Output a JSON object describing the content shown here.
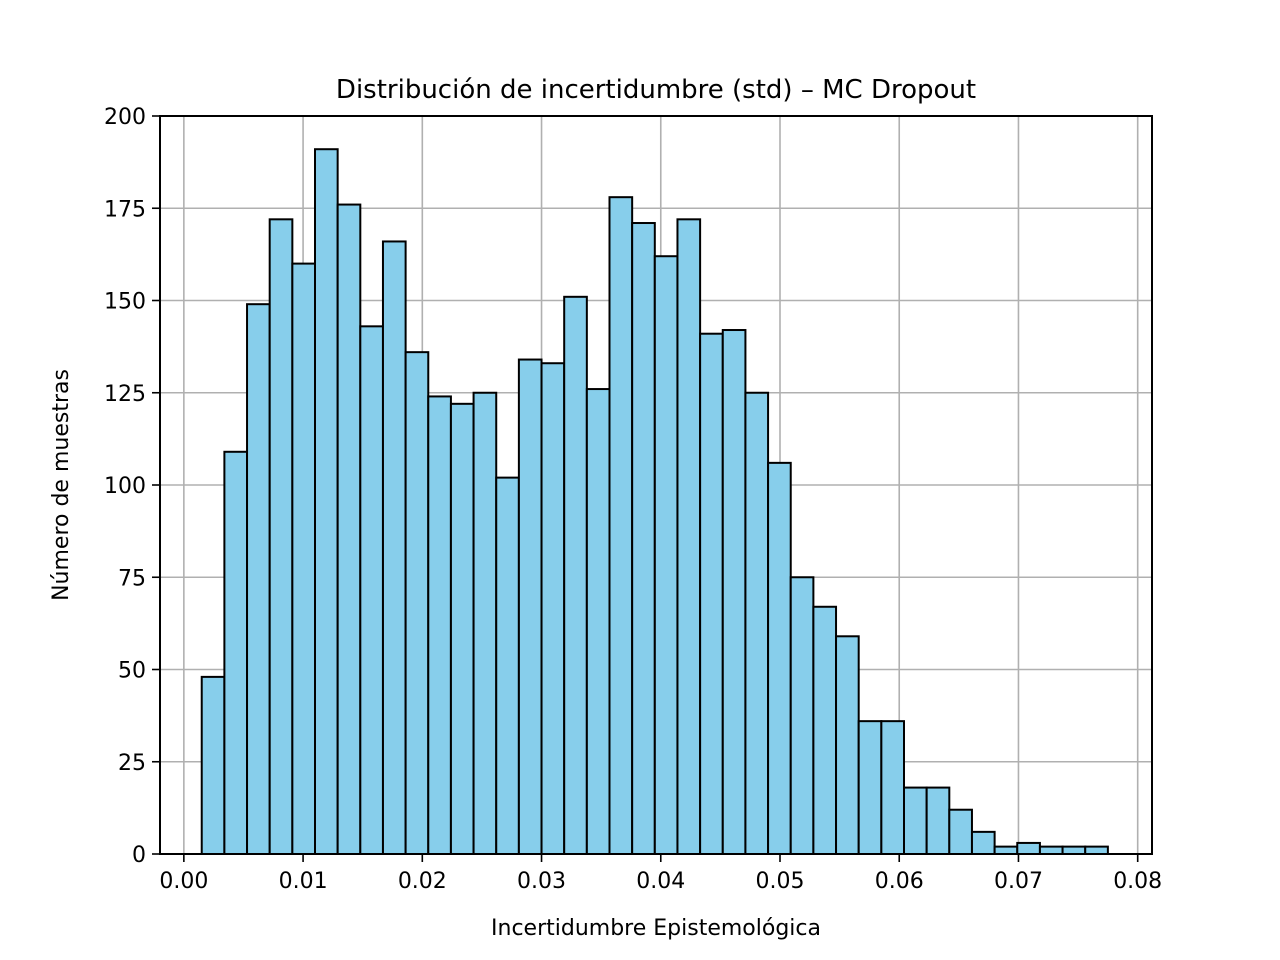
{
  "chart_data": {
    "type": "bar",
    "subtype": "histogram",
    "title": "Distribución de incertidumbre (std) – MC Dropout",
    "xlabel": "Incertidumbre Epistemológica",
    "ylabel": "Número de muestras",
    "xlim": [
      -0.002,
      0.0812
    ],
    "ylim": [
      0,
      200
    ],
    "x_ticks": [
      0.0,
      0.01,
      0.02,
      0.03,
      0.04,
      0.05,
      0.06,
      0.07,
      0.08
    ],
    "x_tick_labels": [
      "0.00",
      "0.01",
      "0.02",
      "0.03",
      "0.04",
      "0.05",
      "0.06",
      "0.07",
      "0.08"
    ],
    "y_ticks": [
      0,
      25,
      50,
      75,
      100,
      125,
      150,
      175,
      200
    ],
    "y_tick_labels": [
      "0",
      "25",
      "50",
      "75",
      "100",
      "125",
      "150",
      "175",
      "200"
    ],
    "grid": true,
    "bin_start": 0.0015,
    "bin_width": 0.0019,
    "values": [
      48,
      109,
      149,
      172,
      160,
      191,
      176,
      143,
      166,
      136,
      124,
      122,
      125,
      102,
      134,
      133,
      151,
      126,
      178,
      171,
      162,
      172,
      141,
      142,
      125,
      106,
      75,
      67,
      59,
      36,
      36,
      18,
      18,
      12,
      6,
      2,
      3,
      2,
      2,
      2
    ],
    "colors": {
      "bar_fill": "#87ceeb",
      "bar_edge": "#000000",
      "grid": "#b0b0b0",
      "axes": "#000000"
    }
  }
}
